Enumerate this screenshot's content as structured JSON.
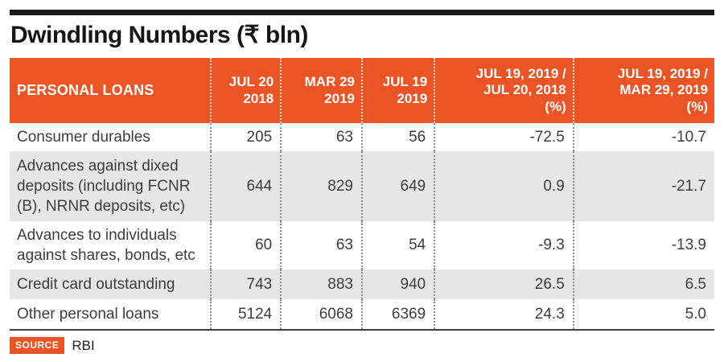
{
  "page": {
    "title": "Dwindling Numbers (₹ bln)",
    "source_label": "SOURCE",
    "source_value": "RBI"
  },
  "colors": {
    "accent_orange": "#eb5424",
    "alt_row_gray": "#e6e6e6",
    "top_bar_black": "#1a1a1a",
    "body_text": "#3d3d3d"
  },
  "chart_data": {
    "type": "table",
    "title": "Dwindling Numbers (₹ bln)",
    "columns": [
      "PERSONAL LOANS",
      "JUL 20\n2018",
      "MAR 29\n2019",
      "JUL 19\n2019",
      "JUL 19, 2019 /\nJUL 20, 2018\n(%)",
      "JUL 19, 2019 /\nMAR 29, 2019\n(%)"
    ],
    "rows": [
      {
        "label": "Consumer durables",
        "values": [
          "205",
          "63",
          "56",
          "-72.5",
          "-10.7"
        ]
      },
      {
        "label": "Advances against dixed deposits (including FCNR (B), NRNR deposits, etc)",
        "values": [
          "644",
          "829",
          "649",
          "0.9",
          "-21.7"
        ]
      },
      {
        "label": "Advances to individuals against shares, bonds, etc",
        "values": [
          "60",
          "63",
          "54",
          "-9.3",
          "-13.9"
        ]
      },
      {
        "label": "Credit card outstanding",
        "values": [
          "743",
          "883",
          "940",
          "26.5",
          "6.5"
        ]
      },
      {
        "label": "Other personal loans",
        "values": [
          "5124",
          "6068",
          "6369",
          "24.3",
          "5.0"
        ]
      }
    ],
    "source": "RBI"
  }
}
